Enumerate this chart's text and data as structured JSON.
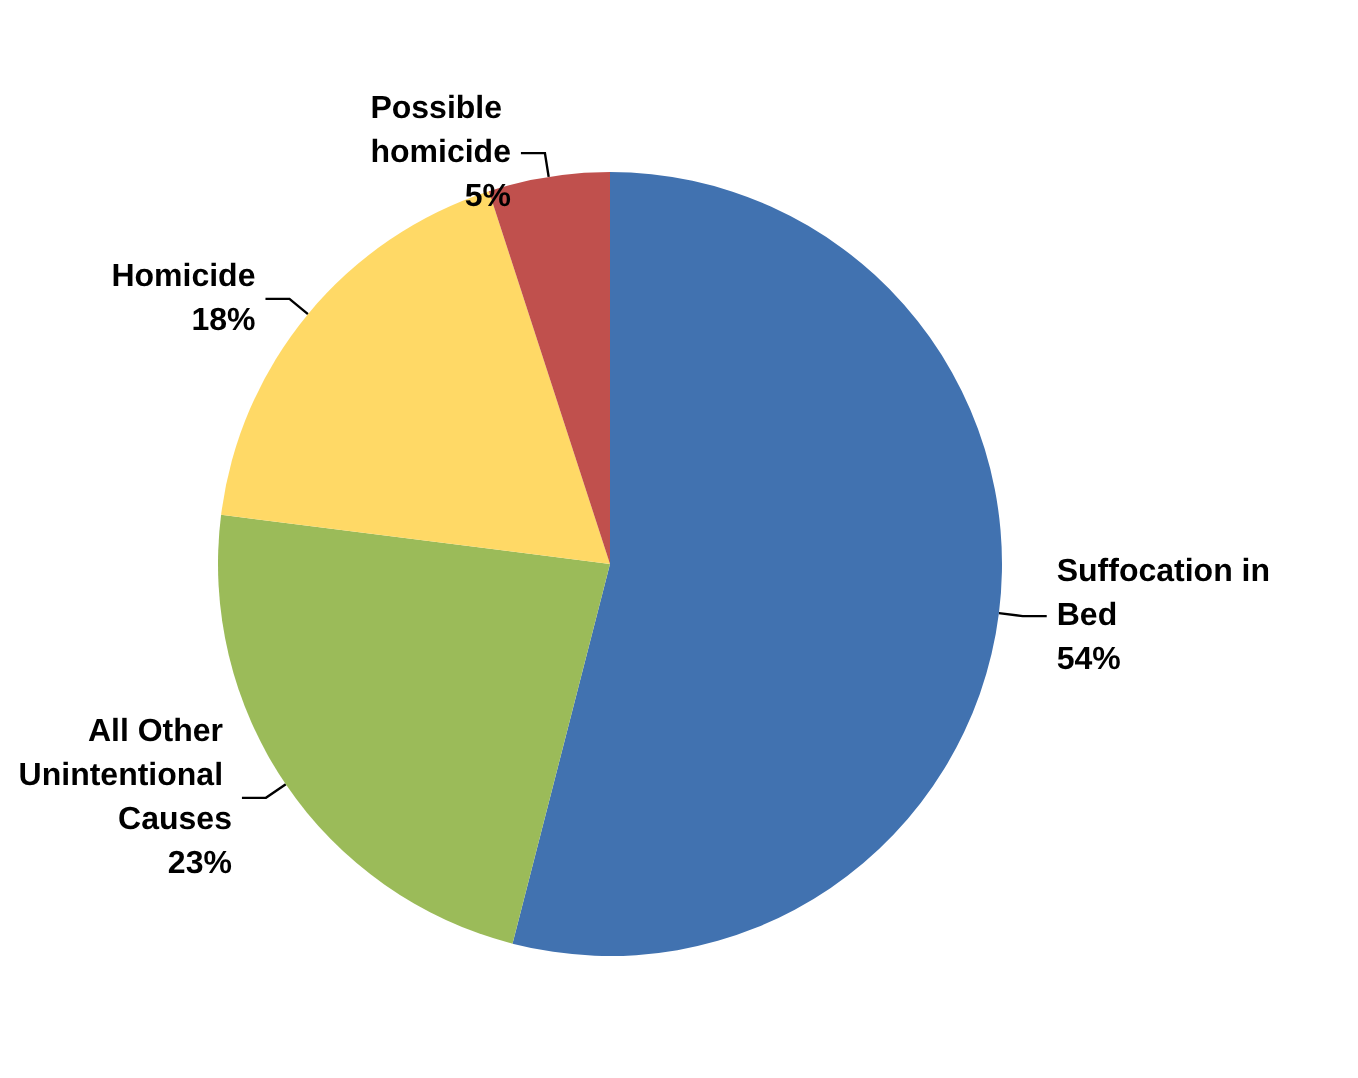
{
  "chart_data": {
    "type": "pie",
    "categories": [
      "Suffocation in Bed",
      "All Other Unintentional Causes",
      "Homicide",
      "Possible homicide"
    ],
    "values": [
      54,
      23,
      18,
      5
    ],
    "value_labels": [
      "54%",
      "23%",
      "18%",
      "5%"
    ],
    "colors": [
      "#4172b0",
      "#9bbb59",
      "#ffd966",
      "#c0504d"
    ],
    "legend": false
  }
}
